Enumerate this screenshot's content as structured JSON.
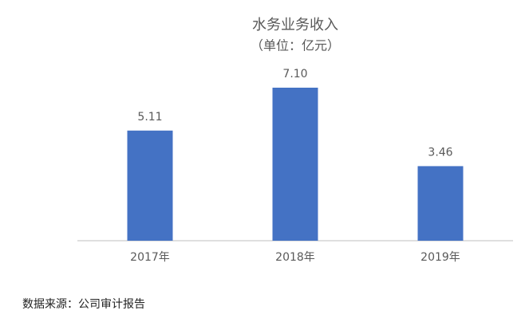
{
  "chart_data": {
    "type": "bar",
    "title": "水务业务收入",
    "subtitle": "（单位：亿元）",
    "categories": [
      "2017年",
      "2018年",
      "2019年"
    ],
    "values": [
      5.11,
      7.1,
      3.46
    ],
    "value_labels": [
      "5.11",
      "7.10",
      "3.46"
    ],
    "color": "#4472c4",
    "source": "数据来源：公司审计报告"
  }
}
